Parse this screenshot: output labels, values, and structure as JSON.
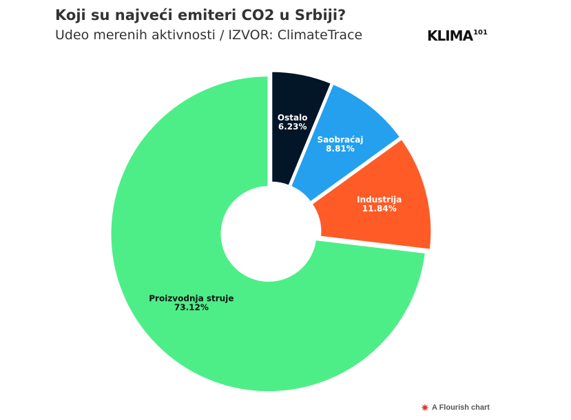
{
  "header": {
    "title": "Koji su najveći emiteri CO2 u Srbiji?",
    "subtitle": "Udeo merenih aktivnosti / IZVOR: ClimateTrace",
    "logo_text": "KLIMA",
    "logo_sup": "101"
  },
  "footer": {
    "credit": "A Flourish chart"
  },
  "chart_data": {
    "type": "pie",
    "donut": true,
    "categories": [
      "Ostalo",
      "Saobraćaj",
      "Industrija",
      "Proizvodnja struje"
    ],
    "values": [
      6.23,
      8.81,
      11.84,
      73.12
    ],
    "value_labels": [
      "6.23%",
      "8.81%",
      "11.84%",
      "73.12%"
    ],
    "colors": [
      "#031627",
      "#24a0ef",
      "#ff5b27",
      "#4dee88"
    ],
    "label_colors": [
      "#ffffff",
      "#ffffff",
      "#ffffff",
      "#111111"
    ],
    "legend": "none"
  }
}
